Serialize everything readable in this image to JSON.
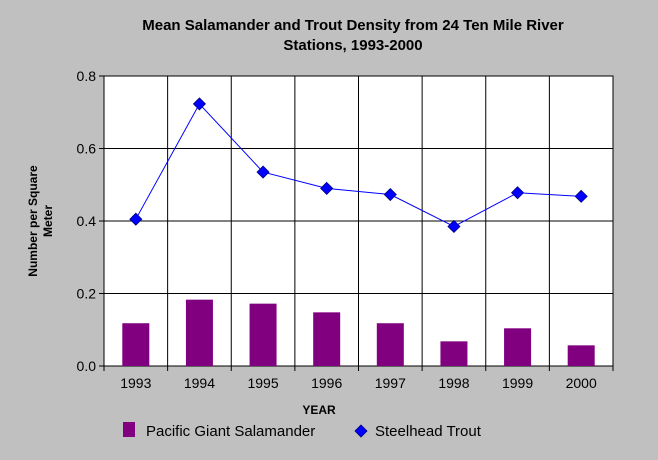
{
  "chart_data": {
    "type": "bar",
    "title_line1": "Mean Salamander and Trout Density from 24 Ten Mile River",
    "title_line2": "Stations, 1993-2000",
    "xlabel": "YEAR",
    "ylabel_line1": "Number per Square",
    "ylabel_line2": "Meter",
    "categories": [
      "1993",
      "1994",
      "1995",
      "1996",
      "1997",
      "1998",
      "1999",
      "2000"
    ],
    "ylim": [
      0,
      0.8
    ],
    "yticks": [
      "0.0",
      "0.2",
      "0.4",
      "0.6",
      "0.8"
    ],
    "grid": true,
    "legend_position": "bottom",
    "series": [
      {
        "name": "Pacific Giant Salamander",
        "type": "bar",
        "color": "#800080",
        "values": [
          0.118,
          0.183,
          0.172,
          0.148,
          0.118,
          0.068,
          0.104,
          0.057
        ]
      },
      {
        "name": "Steelhead Trout",
        "type": "line",
        "marker": "diamond",
        "color": "#0000ff",
        "values": [
          0.405,
          0.723,
          0.535,
          0.49,
          0.473,
          0.385,
          0.478,
          0.468
        ]
      }
    ]
  }
}
